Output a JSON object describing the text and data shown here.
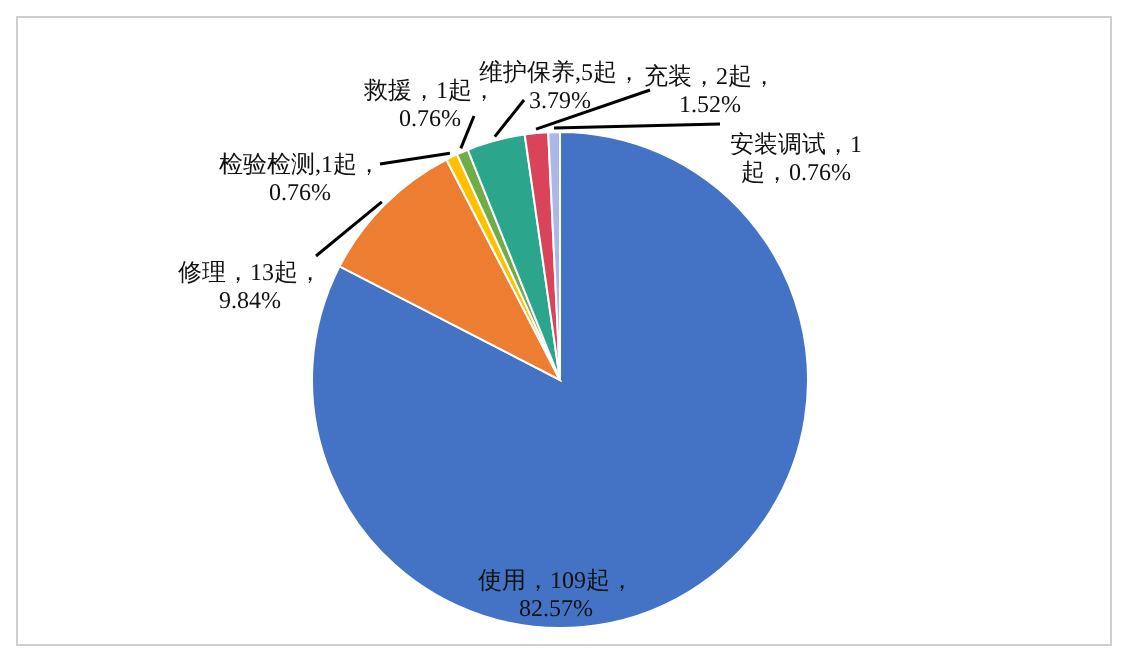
{
  "chart_data": {
    "type": "pie",
    "categories": [
      "使用",
      "修理",
      "检验检测",
      "救援",
      "维护保养",
      "充装",
      "安装调试"
    ],
    "values": [
      109,
      13,
      1,
      1,
      5,
      2,
      1
    ],
    "colors": [
      "#4472c4",
      "#ed7d31",
      "#ffc000",
      "#70ad47",
      "#2ca58d",
      "#d9445a",
      "#a9b8e6"
    ],
    "value_labels": [
      "，109起，\n82.57%",
      "，13起，\n9.84%",
      ",1起，\n0.76%",
      "，1起，\n0.76%",
      ",5起，\n3.79%",
      "，2起，\n1.52%",
      "，1\n起，0.76%"
    ]
  }
}
